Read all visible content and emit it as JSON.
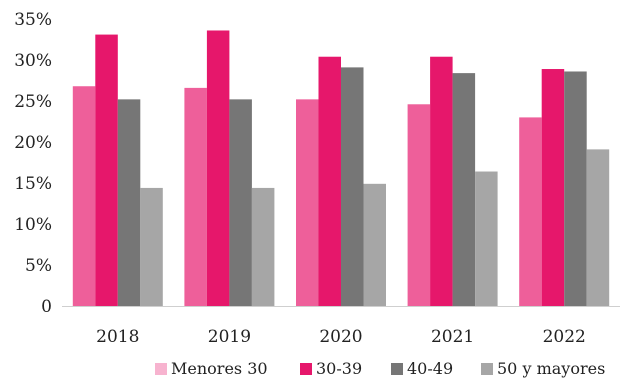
{
  "chart_data": {
    "type": "bar",
    "categories": [
      "2018",
      "2019",
      "2020",
      "2021",
      "2022"
    ],
    "series": [
      {
        "name": "Menores 30",
        "color": "#ee5f9a",
        "legend_color": "#f7b3cf",
        "values": [
          26.8,
          26.6,
          25.2,
          24.6,
          23.0
        ]
      },
      {
        "name": "30-39",
        "color": "#e6176b",
        "legend_color": "#e6176b",
        "values": [
          33.1,
          33.6,
          30.4,
          30.4,
          28.9
        ]
      },
      {
        "name": "40-49",
        "color": "#767676",
        "legend_color": "#767676",
        "values": [
          25.2,
          25.2,
          29.1,
          28.4,
          28.6
        ]
      },
      {
        "name": "50 y mayores",
        "color": "#a6a6a6",
        "legend_color": "#a6a6a6",
        "values": [
          14.4,
          14.4,
          14.9,
          16.4,
          19.1
        ]
      }
    ],
    "y_ticks": [
      "0",
      "5%",
      "10%",
      "15%",
      "20%",
      "25%",
      "30%",
      "35%"
    ],
    "ylim": [
      0,
      35
    ],
    "grid": false,
    "legend_position": "bottom"
  }
}
